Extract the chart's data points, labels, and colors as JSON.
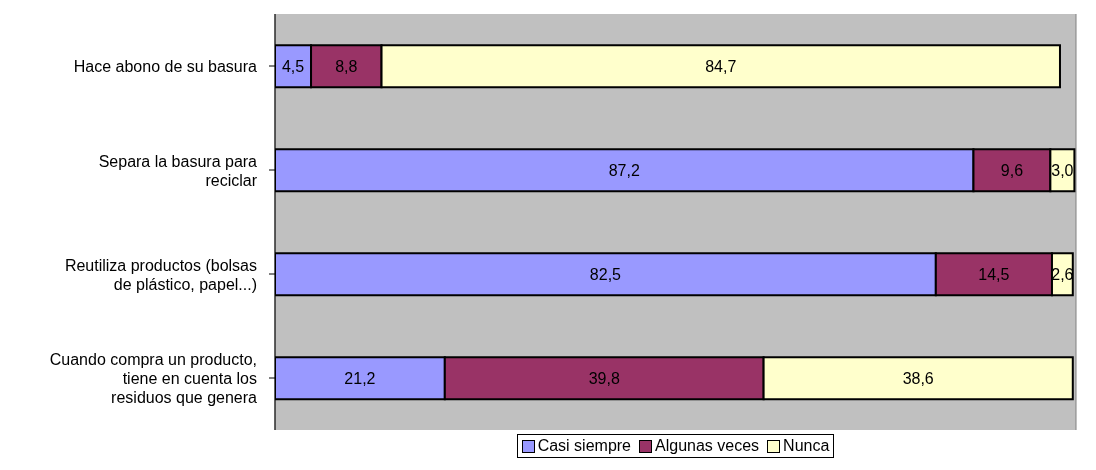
{
  "chart_data": {
    "type": "bar",
    "orientation": "horizontal",
    "stacked": true,
    "categories": [
      "Hace abono de su basura",
      "Separa la basura para reciclar",
      "Reutiliza productos (bolsas de plástico, papel...)",
      "Cuando compra un producto, tiene en cuenta los residuos que genera"
    ],
    "series": [
      {
        "name": "Casi siempre",
        "color": "#9999ff",
        "values": [
          4.5,
          87.2,
          82.5,
          21.2
        ],
        "value_labels": [
          "4,5",
          "87,2",
          "82,5",
          "21,2"
        ]
      },
      {
        "name": "Algunas veces",
        "color": "#993366",
        "values": [
          8.8,
          9.6,
          14.5,
          39.8
        ],
        "value_labels": [
          "8,8",
          "9,6",
          "14,5",
          "39,8"
        ]
      },
      {
        "name": "Nunca",
        "color": "#ffffcc",
        "values": [
          84.7,
          3.0,
          2.6,
          38.6
        ],
        "value_labels": [
          "84,7",
          "3,0",
          "2,6",
          "38,6"
        ]
      }
    ],
    "xlim": [
      0,
      100
    ],
    "tick_labels": "y",
    "grid": "x",
    "legend": "bottom"
  }
}
